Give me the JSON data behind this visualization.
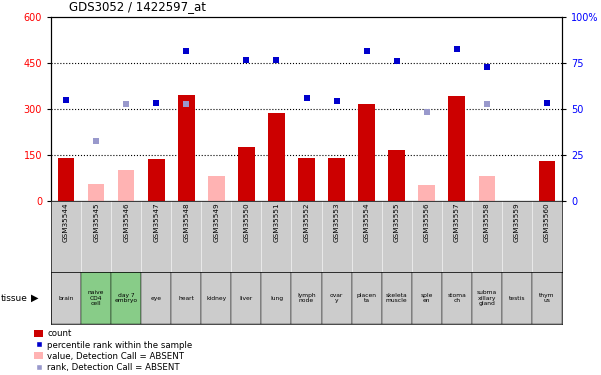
{
  "title": "GDS3052 / 1422597_at",
  "samples": [
    "GSM35544",
    "GSM35545",
    "GSM35546",
    "GSM35547",
    "GSM35548",
    "GSM35549",
    "GSM35550",
    "GSM35551",
    "GSM35552",
    "GSM35553",
    "GSM35554",
    "GSM35555",
    "GSM35556",
    "GSM35557",
    "GSM35558",
    "GSM35559",
    "GSM35560"
  ],
  "tissues": [
    "brain",
    "naive\nCD4\ncell",
    "day 7\nembryo",
    "eye",
    "heart",
    "kidney",
    "liver",
    "lung",
    "lymph\nnode",
    "ovar\ny",
    "placen\nta",
    "skeleta\nmuscle",
    "sple\nen",
    "stoma\nch",
    "subma\nxillary\ngland",
    "testis",
    "thym\nus"
  ],
  "tissue_green": [
    false,
    true,
    true,
    false,
    false,
    false,
    false,
    false,
    false,
    false,
    false,
    false,
    false,
    false,
    false,
    false,
    false
  ],
  "count_values": [
    140,
    null,
    null,
    135,
    345,
    null,
    175,
    285,
    140,
    140,
    315,
    165,
    null,
    340,
    null,
    null,
    130
  ],
  "count_absent": [
    null,
    55,
    100,
    null,
    null,
    80,
    null,
    null,
    null,
    null,
    null,
    null,
    50,
    null,
    80,
    null,
    null
  ],
  "rank_values": [
    330,
    null,
    null,
    320,
    null,
    null,
    460,
    460,
    335,
    325,
    null,
    455,
    null,
    null,
    435,
    null,
    320
  ],
  "rank_absent": [
    null,
    195,
    315,
    null,
    315,
    null,
    null,
    null,
    null,
    null,
    null,
    null,
    290,
    null,
    315,
    null,
    null
  ],
  "high_rank": [
    null,
    null,
    null,
    null,
    490,
    null,
    null,
    null,
    null,
    null,
    490,
    null,
    null,
    495,
    null,
    null,
    null
  ],
  "bar_color": "#cc0000",
  "absent_bar_color": "#ffb3b3",
  "blue_color": "#0000cc",
  "light_blue_color": "#9999cc",
  "tick_bg": "#cccccc",
  "green_bg": "#88cc88",
  "ylim_left": [
    0,
    600
  ],
  "ylim_right": [
    0,
    100
  ],
  "yticks_left": [
    0,
    150,
    300,
    450,
    600
  ],
  "yticks_right": [
    0,
    25,
    50,
    75,
    100
  ],
  "legend_items": [
    "count",
    "percentile rank within the sample",
    "value, Detection Call = ABSENT",
    "rank, Detection Call = ABSENT"
  ]
}
